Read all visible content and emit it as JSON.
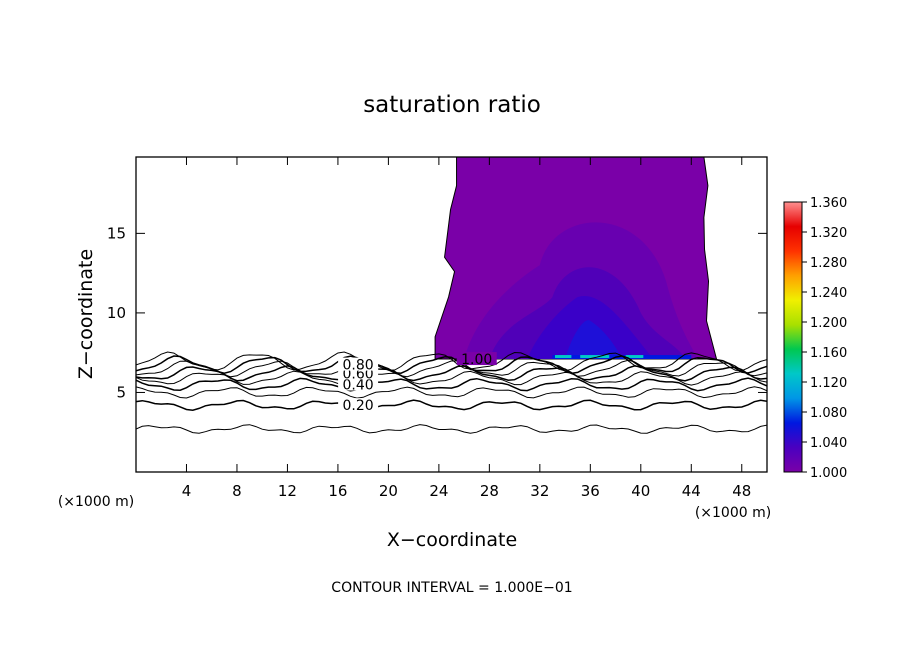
{
  "chart_data": {
    "type": "contour",
    "title": "saturation ratio",
    "xlabel": "X−coordinate",
    "ylabel": "Z−coordinate",
    "x_unit_left": "(×1000 m)",
    "x_unit_right": "(×1000 m)",
    "xlim": [
      0,
      50
    ],
    "ylim": [
      0,
      19.8
    ],
    "x_ticks": [
      4,
      8,
      12,
      16,
      20,
      24,
      28,
      32,
      36,
      40,
      44,
      48
    ],
    "y_ticks": [
      5,
      10,
      15
    ],
    "footer": "CONTOUR INTERVAL = 1.000E−01",
    "contour_lines": [
      {
        "level": 0.1,
        "label": "",
        "z": 2.7
      },
      {
        "level": 0.2,
        "label": "0.20",
        "z": 4.2
      },
      {
        "level": 0.3,
        "label": "",
        "z": 5.0
      },
      {
        "level": 0.4,
        "label": "0.40",
        "z": 5.5
      },
      {
        "level": 0.5,
        "label": "",
        "z": 5.9
      },
      {
        "level": 0.6,
        "label": "0.60",
        "z": 6.2
      },
      {
        "level": 0.7,
        "label": "",
        "z": 6.5
      },
      {
        "level": 0.8,
        "label": "0.80",
        "z": 6.75
      },
      {
        "level": 0.9,
        "label": "",
        "z": 6.95
      }
    ],
    "contour_label_x": 17.6,
    "saturated_region": {
      "level": 1.0,
      "label": "1.00",
      "label_position": [
        27,
        7.1
      ],
      "z_base": 7.1,
      "z_top": 19.8,
      "x_left_top": 25.4,
      "x_left_base": 23.7,
      "x_right_top": 45.0,
      "x_right_base": 46.0
    },
    "colorbar": {
      "min": 1.0,
      "max": 1.36,
      "labels": [
        "1.360",
        "1.320",
        "1.280",
        "1.240",
        "1.200",
        "1.160",
        "1.120",
        "1.080",
        "1.040",
        "1.000"
      ],
      "colors": [
        "#7a00a8",
        "#4a00c0",
        "#0018e0",
        "#0096e6",
        "#00c8c8",
        "#00c850",
        "#a8e000",
        "#f0f000",
        "#ffa000",
        "#ff3200",
        "#e60000",
        "#ff9090"
      ]
    }
  }
}
